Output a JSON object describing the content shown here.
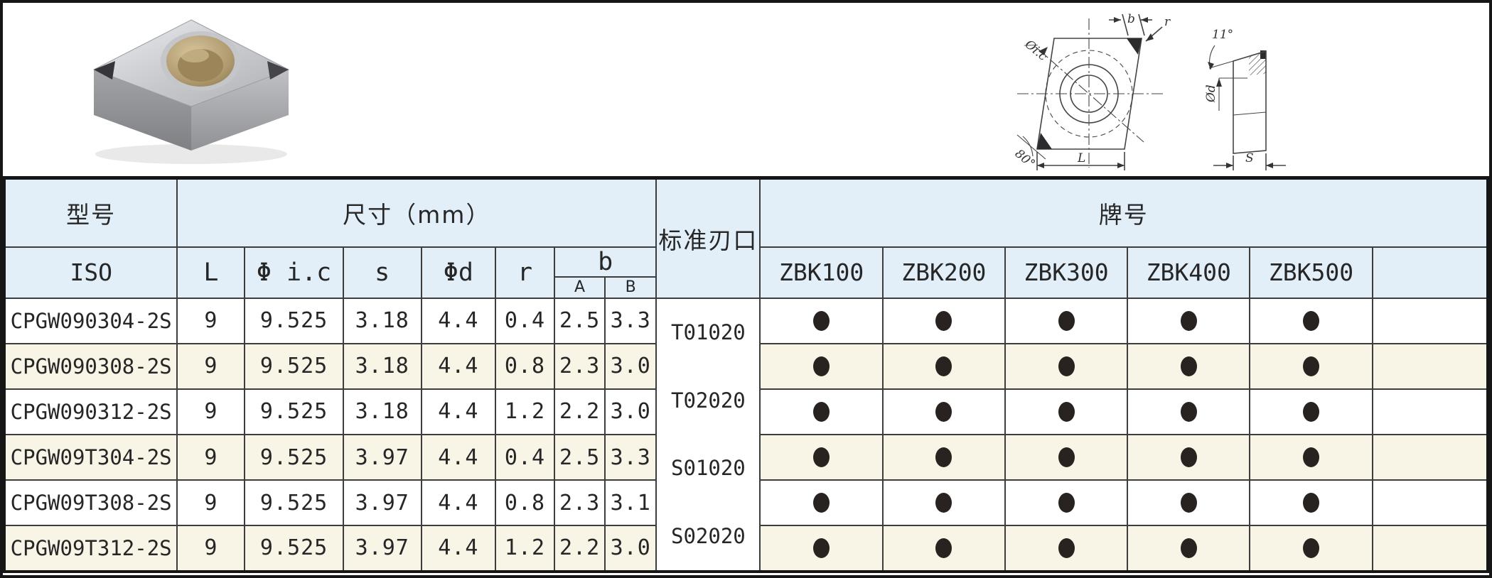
{
  "table": {
    "col_model": "型号",
    "col_iso": "ISO",
    "col_dims": "尺寸（mm）",
    "dim_cols": [
      "L",
      "Φ i.c",
      "s",
      "Φd",
      "r"
    ],
    "col_b": "b",
    "b_sub": [
      "A",
      "B"
    ],
    "col_edge": "标准刃口",
    "col_grade": "牌号",
    "grade_cols": [
      "ZBK100",
      "ZBK200",
      "ZBK300",
      "ZBK400",
      "ZBK500"
    ],
    "edge_labels": [
      "T01020",
      "T02020",
      "S01020",
      "S02020"
    ],
    "rows": [
      {
        "model": "CPGW090304-2S",
        "L": "9",
        "ic": "9.525",
        "s": "3.18",
        "d": "4.4",
        "r": "0.4",
        "A": "2.5",
        "B": "3.3",
        "grades": [
          true,
          true,
          true,
          true,
          true
        ]
      },
      {
        "model": "CPGW090308-2S",
        "L": "9",
        "ic": "9.525",
        "s": "3.18",
        "d": "4.4",
        "r": "0.8",
        "A": "2.3",
        "B": "3.0",
        "grades": [
          true,
          true,
          true,
          true,
          true
        ]
      },
      {
        "model": "CPGW090312-2S",
        "L": "9",
        "ic": "9.525",
        "s": "3.18",
        "d": "4.4",
        "r": "1.2",
        "A": "2.2",
        "B": "3.0",
        "grades": [
          true,
          true,
          true,
          true,
          true
        ]
      },
      {
        "model": "CPGW09T304-2S",
        "L": "9",
        "ic": "9.525",
        "s": "3.97",
        "d": "4.4",
        "r": "0.4",
        "A": "2.5",
        "B": "3.3",
        "grades": [
          true,
          true,
          true,
          true,
          true
        ]
      },
      {
        "model": "CPGW09T308-2S",
        "L": "9",
        "ic": "9.525",
        "s": "3.97",
        "d": "4.4",
        "r": "0.8",
        "A": "2.3",
        "B": "3.1",
        "grades": [
          true,
          true,
          true,
          true,
          true
        ]
      },
      {
        "model": "CPGW09T312-2S",
        "L": "9",
        "ic": "9.525",
        "s": "3.97",
        "d": "4.4",
        "r": "1.2",
        "A": "2.2",
        "B": "3.0",
        "grades": [
          true,
          true,
          true,
          true,
          true
        ]
      }
    ]
  },
  "drawing": {
    "front_labels": {
      "b": "b",
      "r": "r",
      "ic": "Øi.c",
      "angle": "80°",
      "L": "L"
    },
    "side_labels": {
      "clearance": "11°",
      "d": "Ød",
      "s": "S"
    }
  },
  "colors": {
    "header_blue": "#e2eff8",
    "row_cream": "#f8f5e7",
    "dot": "#282220"
  }
}
